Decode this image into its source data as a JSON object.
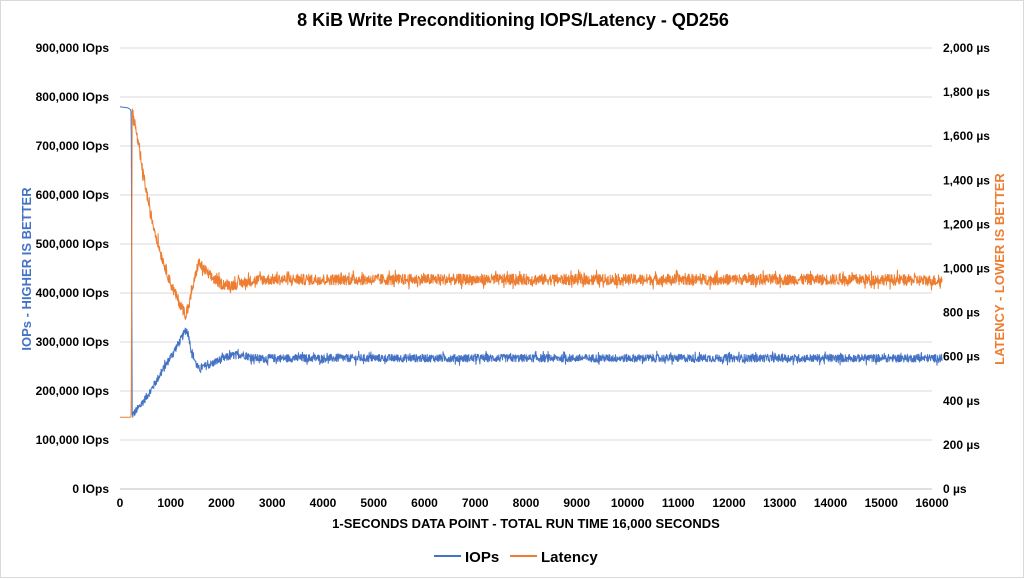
{
  "chart_data": {
    "type": "line",
    "title": "8 KiB Write Preconditioning IOPS/Latency - QD256",
    "xlabel": "1-SECONDS DATA POINT - TOTAL RUN TIME 16,000 SECONDS",
    "ylabel_left": "IOPs - HIGHER IS BETTER",
    "ylabel_right": "LATENCY - LOWER IS BETTER",
    "xlim": [
      0,
      16000
    ],
    "ylim_left": [
      0,
      900000
    ],
    "ylim_right": [
      0,
      2000
    ],
    "x_ticks": [
      "0",
      "1000",
      "2000",
      "3000",
      "4000",
      "5000",
      "6000",
      "7000",
      "8000",
      "9000",
      "10000",
      "11000",
      "12000",
      "13000",
      "14000",
      "15000",
      "16000"
    ],
    "y_left_ticks": [
      "0 IOps",
      "100,000 IOps",
      "200,000 IOps",
      "300,000 IOps",
      "400,000 IOps",
      "500,000 IOps",
      "600,000 IOps",
      "700,000 IOps",
      "800,000 IOps",
      "900,000 IOps"
    ],
    "y_right_ticks": [
      "0 µs",
      "200 µs",
      "400 µs",
      "600 µs",
      "800 µs",
      "1,000 µs",
      "1,200 µs",
      "1,400 µs",
      "1,600 µs",
      "1,800 µs",
      "2,000 µs"
    ],
    "grid": "horizontal",
    "legend_position": "bottom",
    "series": [
      {
        "name": "IOPs",
        "axis": "left",
        "color": "#4472c4",
        "x": [
          0,
          150,
          200,
          220,
          240,
          400,
          600,
          800,
          1000,
          1200,
          1300,
          1350,
          1400,
          1500,
          1550,
          1600,
          1800,
          2000,
          2200,
          2400,
          2600,
          2800,
          3000,
          4000,
          5000,
          6000,
          7000,
          8000,
          9000,
          10000,
          11000,
          12000,
          13000,
          14000,
          15000,
          16000,
          16200
        ],
        "y": [
          780000,
          778000,
          775000,
          770000,
          150000,
          170000,
          200000,
          235000,
          270000,
          305000,
          325000,
          315000,
          285000,
          255000,
          245000,
          248000,
          255000,
          265000,
          272000,
          275000,
          268000,
          266000,
          267000,
          267000,
          267000,
          267000,
          267000,
          267000,
          267000,
          267000,
          267000,
          267000,
          267000,
          267000,
          267000,
          267000,
          267000
        ],
        "noise": 8000
      },
      {
        "name": "Latency",
        "axis": "right",
        "color": "#ed7d31",
        "x": [
          0,
          200,
          220,
          240,
          300,
          400,
          600,
          800,
          1000,
          1200,
          1300,
          1350,
          1400,
          1500,
          1550,
          1600,
          1800,
          2000,
          2200,
          2400,
          2600,
          2800,
          3000,
          4000,
          5000,
          6000,
          7000,
          8000,
          9000,
          10000,
          11000,
          12000,
          13000,
          14000,
          15000,
          16000,
          16200
        ],
        "y": [
          325,
          325,
          330,
          1720,
          1650,
          1500,
          1250,
          1070,
          930,
          830,
          790,
          820,
          880,
          980,
          1030,
          1010,
          960,
          930,
          925,
          935,
          945,
          950,
          950,
          950,
          950,
          950,
          950,
          950,
          950,
          950,
          950,
          950,
          950,
          950,
          950,
          945,
          945
        ],
        "noise": 25
      }
    ]
  }
}
